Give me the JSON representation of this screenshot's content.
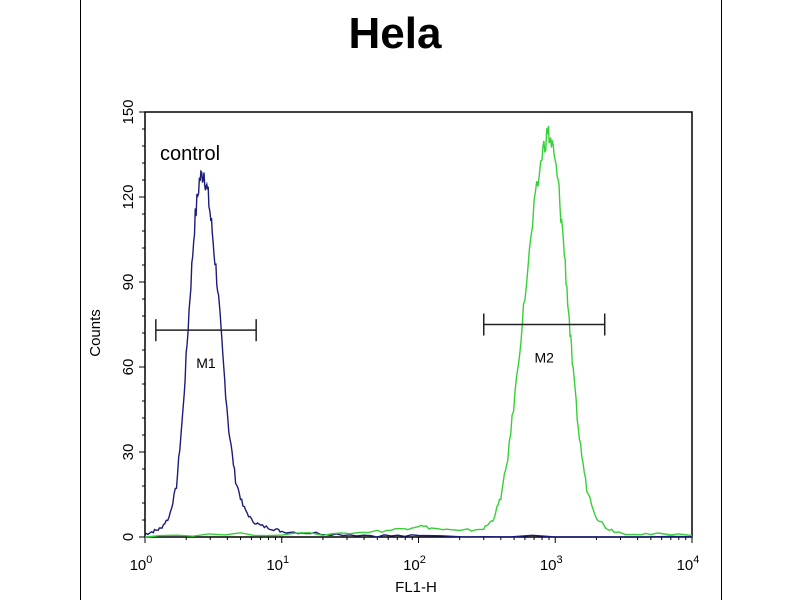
{
  "chart_data": {
    "type": "line",
    "title": "Hela",
    "xlabel": "FL1-H",
    "ylabel": "Counts",
    "x_scale": "log",
    "xlim": [
      1,
      10000
    ],
    "ylim": [
      0,
      150
    ],
    "x_ticks": [
      {
        "value": 1,
        "base": "10",
        "exp": "0"
      },
      {
        "value": 10,
        "base": "10",
        "exp": "1"
      },
      {
        "value": 100,
        "base": "10",
        "exp": "2"
      },
      {
        "value": 1000,
        "base": "10",
        "exp": "3"
      },
      {
        "value": 10000,
        "base": "10",
        "exp": "4"
      }
    ],
    "y_ticks": [
      0,
      30,
      60,
      90,
      120,
      150
    ],
    "annotation": "control",
    "gates": [
      {
        "label": "M1",
        "x_start": 1.2,
        "x_end": 6.5,
        "y": 73
      },
      {
        "label": "M2",
        "x_start": 300,
        "x_end": 2300,
        "y": 75
      }
    ],
    "series": [
      {
        "name": "control",
        "color": "#1c1c7a",
        "points": [
          [
            1.0,
            1
          ],
          [
            1.15,
            2
          ],
          [
            1.3,
            3
          ],
          [
            1.5,
            7
          ],
          [
            1.7,
            18
          ],
          [
            1.9,
            45
          ],
          [
            2.1,
            80
          ],
          [
            2.3,
            110
          ],
          [
            2.5,
            126
          ],
          [
            2.7,
            129
          ],
          [
            2.9,
            120
          ],
          [
            3.1,
            108
          ],
          [
            3.4,
            88
          ],
          [
            3.7,
            64
          ],
          [
            4.1,
            38
          ],
          [
            4.6,
            20
          ],
          [
            5.2,
            11
          ],
          [
            6,
            6
          ],
          [
            7,
            4
          ],
          [
            8.5,
            3
          ],
          [
            10,
            2
          ],
          [
            15,
            1.5
          ],
          [
            25,
            1
          ],
          [
            50,
            0.5
          ],
          [
            100,
            0.3
          ],
          [
            1000,
            0.2
          ],
          [
            10000,
            0.1
          ]
        ]
      },
      {
        "name": "",
        "color": "#38d038",
        "points": [
          [
            1.0,
            0.5
          ],
          [
            5,
            1
          ],
          [
            20,
            1
          ],
          [
            50,
            2
          ],
          [
            80,
            3
          ],
          [
            100,
            4
          ],
          [
            130,
            3
          ],
          [
            200,
            2
          ],
          [
            300,
            3
          ],
          [
            350,
            6
          ],
          [
            400,
            14
          ],
          [
            450,
            28
          ],
          [
            520,
            55
          ],
          [
            600,
            85
          ],
          [
            700,
            115
          ],
          [
            800,
            135
          ],
          [
            880,
            143
          ],
          [
            950,
            138
          ],
          [
            1050,
            125
          ],
          [
            1150,
            104
          ],
          [
            1250,
            80
          ],
          [
            1350,
            58
          ],
          [
            1500,
            35
          ],
          [
            1700,
            17
          ],
          [
            2000,
            7
          ],
          [
            2400,
            3
          ],
          [
            3000,
            1.5
          ],
          [
            5000,
            1
          ],
          [
            10000,
            0.5
          ]
        ]
      }
    ]
  }
}
